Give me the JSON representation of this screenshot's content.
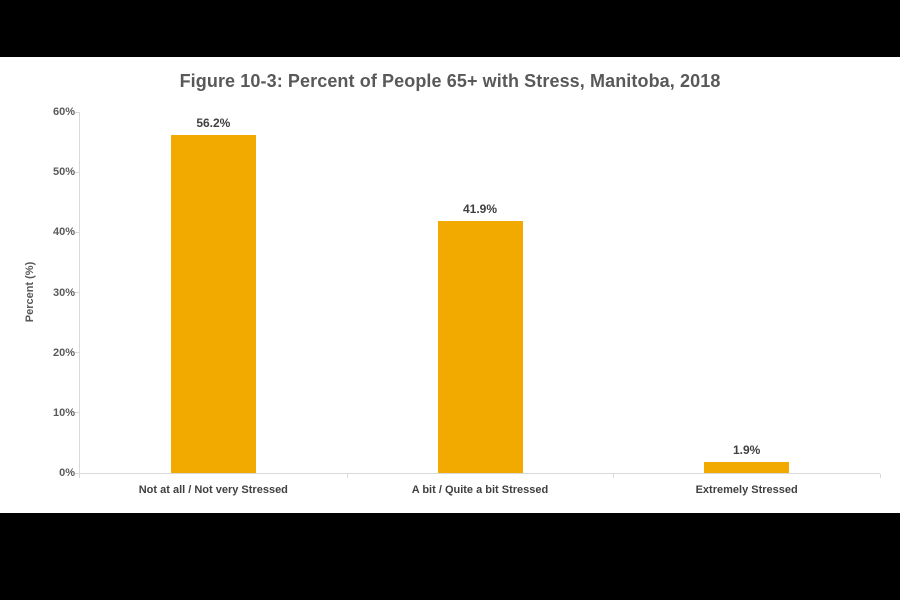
{
  "chart_data": {
    "type": "bar",
    "title": "Figure 10-3: Percent of People 65+ with Stress, Manitoba, 2018",
    "categories": [
      "Not at all / Not very Stressed",
      "A bit / Quite a bit Stressed",
      "Extremely Stressed"
    ],
    "values": [
      56.2,
      41.9,
      1.9
    ],
    "value_labels": [
      "56.2%",
      "41.9%",
      "1.9%"
    ],
    "xlabel": "",
    "ylabel": "Percent (%)",
    "ylim": [
      0,
      60
    ],
    "ytick_step": 10,
    "ytick_labels": [
      "0%",
      "10%",
      "20%",
      "30%",
      "40%",
      "50%",
      "60%"
    ],
    "grid": "off",
    "legend": "none",
    "colors": {
      "bar": "#F2A900",
      "title_text": "#595959",
      "label_text": "#404040",
      "axis_line": "#D9D9D9",
      "background": "#FFFFFF",
      "letterbox": "#000000"
    }
  }
}
